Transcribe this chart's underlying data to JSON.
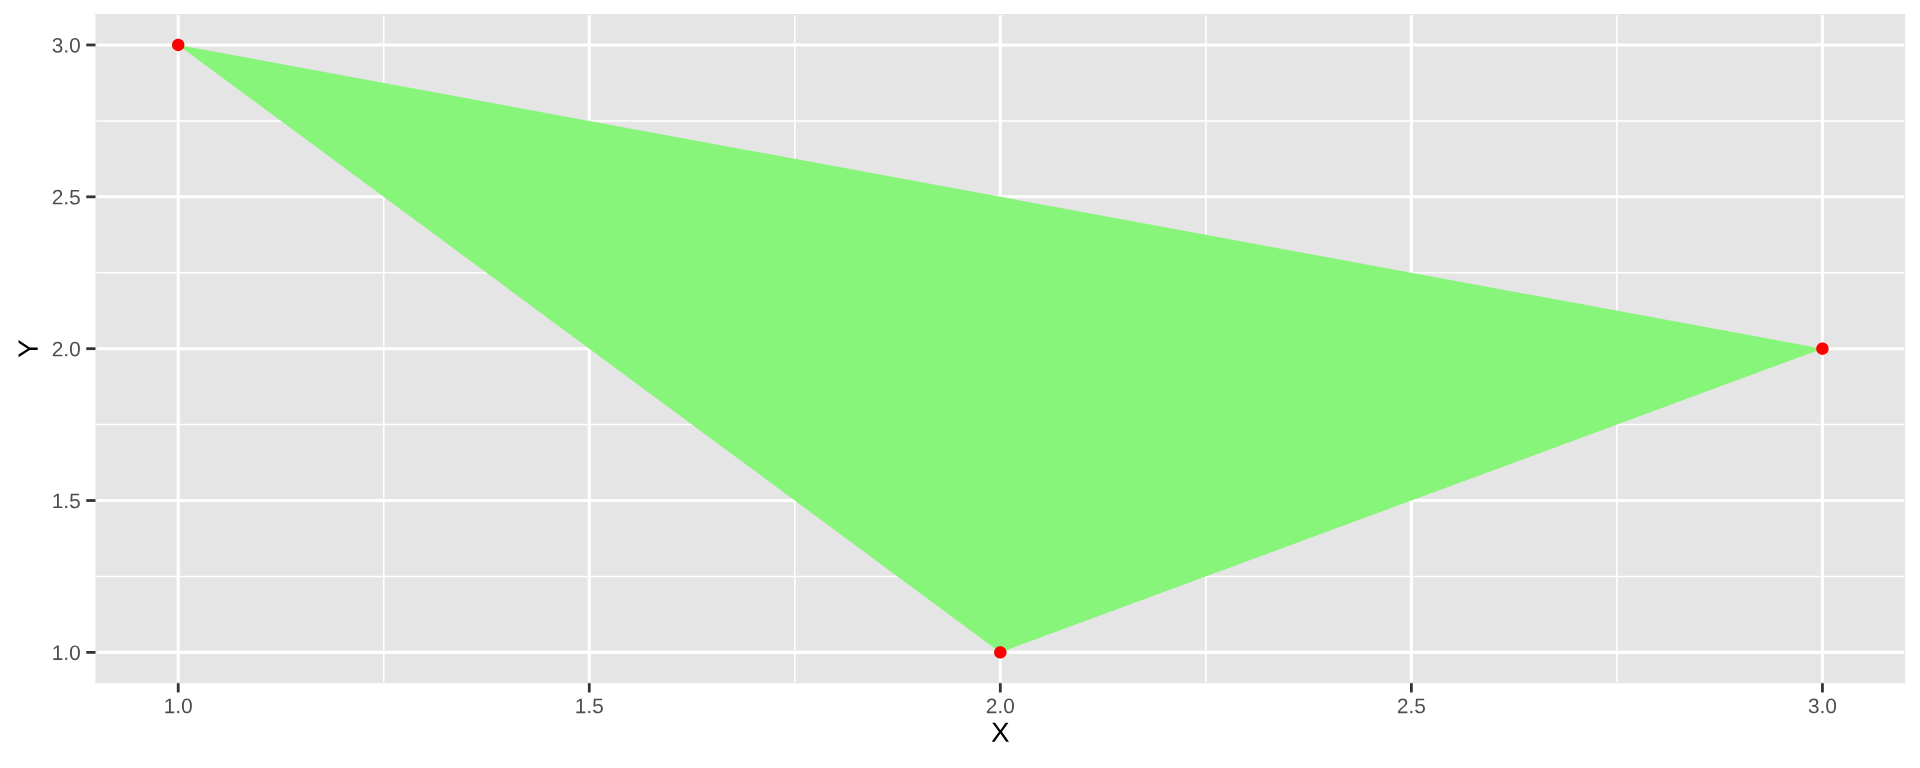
{
  "chart_data": {
    "type": "scatter",
    "xlabel": "X",
    "ylabel": "Y",
    "xlim": [
      0.9,
      3.1
    ],
    "ylim": [
      0.9,
      3.1
    ],
    "xticks": [
      {
        "value": 1,
        "label": "1.0"
      },
      {
        "value": 1.5,
        "label": "1.5"
      },
      {
        "value": 2,
        "label": "2.0"
      },
      {
        "value": 2.5,
        "label": "2.5"
      },
      {
        "value": 3,
        "label": "3.0"
      }
    ],
    "yticks": [
      {
        "value": 1,
        "label": "1.0"
      },
      {
        "value": 1.5,
        "label": "1.5"
      },
      {
        "value": 2,
        "label": "2.0"
      },
      {
        "value": 2.5,
        "label": "2.5"
      },
      {
        "value": 3,
        "label": "3.0"
      }
    ],
    "grid": true,
    "series": [
      {
        "type": "area",
        "color": "#87f47a",
        "x": [
          1,
          2,
          3
        ],
        "values": [
          3,
          1,
          2
        ]
      },
      {
        "color": "#ff0000",
        "x": [
          1,
          2,
          3
        ],
        "values": [
          3,
          1,
          2
        ],
        "marker": "circle"
      }
    ]
  }
}
